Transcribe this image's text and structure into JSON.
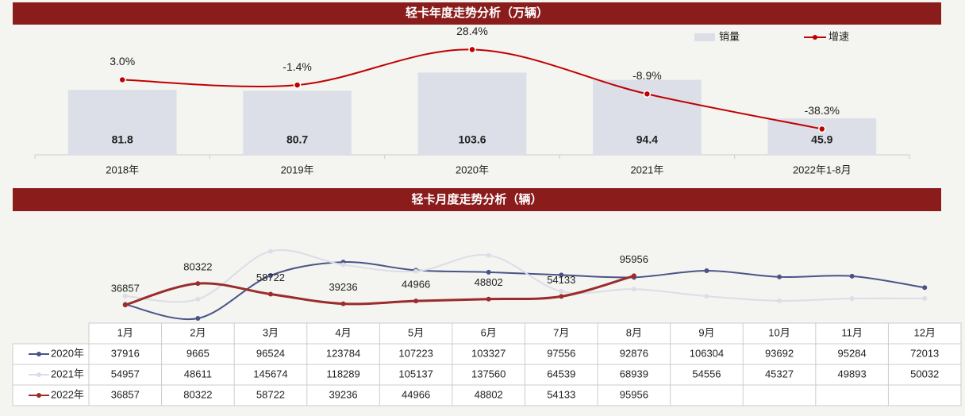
{
  "chart_data": [
    {
      "type": "bar",
      "title": "轻卡年度走势分析（万辆）",
      "categories": [
        "2018年",
        "2019年",
        "2020年",
        "2021年",
        "2022年1-8月"
      ],
      "series": [
        {
          "name": "销量",
          "color": "#dcdfe8",
          "values": [
            81.8,
            80.7,
            103.6,
            94.4,
            45.9
          ]
        },
        {
          "name": "增速",
          "color": "#c00000",
          "axis": "y2",
          "values": [
            3.0,
            -1.4,
            28.4,
            -8.9,
            -38.3
          ],
          "value_labels": [
            "3.0%",
            "-1.4%",
            "28.4%",
            "-8.9%",
            "-38.3%"
          ]
        }
      ],
      "ylim": [
        0,
        165
      ],
      "y2lim": [
        -60,
        50
      ],
      "legend": "top-right"
    },
    {
      "type": "line",
      "title": "轻卡月度走势分析（辆）",
      "categories": [
        "1月",
        "2月",
        "3月",
        "4月",
        "5月",
        "6月",
        "7月",
        "8月",
        "9月",
        "10月",
        "11月",
        "12月"
      ],
      "series": [
        {
          "name": "2020年",
          "color": "#4a5488",
          "values": [
            37916,
            9665,
            96524,
            123784,
            107223,
            103327,
            97556,
            92876,
            106304,
            93692,
            95284,
            72013
          ]
        },
        {
          "name": "2021年",
          "color": "#dcdde8",
          "values": [
            54957,
            48611,
            145674,
            118289,
            105137,
            137560,
            64539,
            68939,
            54556,
            45327,
            49893,
            50032
          ]
        },
        {
          "name": "2022年",
          "color": "#9b2c2c",
          "values": [
            36857,
            80322,
            58722,
            39236,
            44966,
            48802,
            54133,
            95956,
            null,
            null,
            null,
            null
          ],
          "data_labels": true
        }
      ],
      "ylim": [
        0,
        190000
      ]
    }
  ]
}
